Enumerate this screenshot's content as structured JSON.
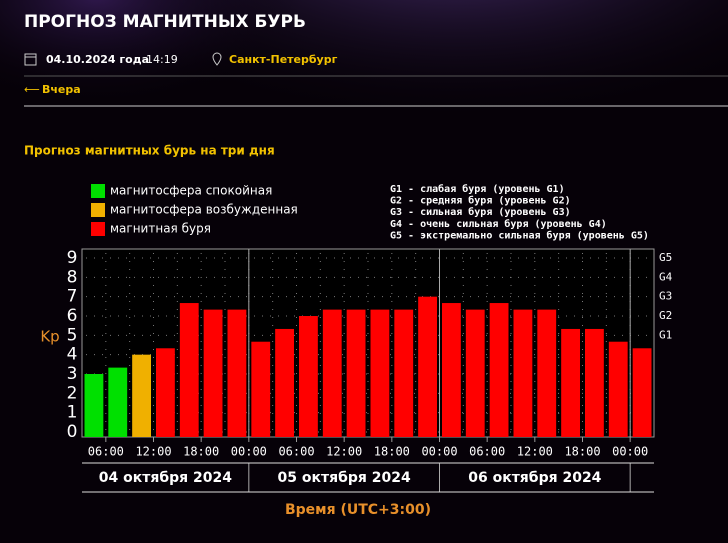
{
  "page": {
    "title": "ПРОГНОЗ МАГНИТНЫХ БУРЬ",
    "date": "04.10.2024 года",
    "time": "14:19",
    "city": "Санкт-Петербург",
    "back": "Вчера",
    "section_title": "Прогноз магнитных бурь на три дня"
  },
  "chart_data": {
    "type": "bar",
    "y_label": "Kp",
    "x_label": "Время (UTC+3:00)",
    "legend": [
      {
        "label": "магнитосфера спокойная",
        "color": "#00e000"
      },
      {
        "label": "магнитосфера возбужденная",
        "color": "#f0b000"
      },
      {
        "label": "магнитная буря",
        "color": "#ff0000"
      }
    ],
    "g_scale": [
      "G1 - слабая буря (уровень G1)",
      "G2 - средняя буря (уровень G2)",
      "G3 - сильная буря (уровень G3)",
      "G4 - очень сильная буря (уровень G4)",
      "G5 - экстремально сильная буря (уровень G5)"
    ],
    "categories": [
      null,
      null,
      null,
      null,
      null,
      null,
      null,
      null,
      null,
      null,
      null,
      null,
      null,
      null,
      null,
      null,
      null,
      null,
      null,
      null,
      null,
      null,
      null,
      null
    ],
    "values": [
      3,
      3.33,
      4,
      4.33,
      6.67,
      6.33,
      6.33,
      4.67,
      5.33,
      6,
      6.33,
      6.33,
      6.33,
      6.33,
      7,
      6.67,
      6.33,
      6.67,
      6.33,
      6.33,
      5.33,
      5.33,
      4.67,
      4.33
    ],
    "colors": [
      "#00e000",
      "#00e000",
      "#f0b000",
      "#ff0000",
      "#ff0000",
      "#ff0000",
      "#ff0000",
      "#ff0000",
      "#ff0000",
      "#ff0000",
      "#ff0000",
      "#ff0000",
      "#ff0000",
      "#ff0000",
      "#ff0000",
      "#ff0000",
      "#ff0000",
      "#ff0000",
      "#ff0000",
      "#ff0000",
      "#ff0000",
      "#ff0000",
      "#ff0000",
      "#ff0000"
    ],
    "time_labels": [
      "06:00",
      "12:00",
      "18:00",
      "00:00",
      "06:00",
      "12:00",
      "18:00",
      "00:00",
      "06:00",
      "12:00",
      "18:00",
      "00:00"
    ],
    "date_labels": [
      "04 октября 2024",
      "05 октября 2024",
      "06 октября 2024"
    ],
    "ylim": [
      0,
      9
    ],
    "yticks": [
      0,
      1,
      2,
      3,
      4,
      5,
      6,
      7,
      8,
      9
    ],
    "y2lim": [
      0,
      9
    ],
    "y2ticks": [
      {
        "value": 5,
        "label": "G1"
      },
      {
        "value": 6,
        "label": "G2"
      },
      {
        "value": 7,
        "label": "G3"
      },
      {
        "value": 8,
        "label": "G4"
      },
      {
        "value": 9,
        "label": "G5"
      }
    ],
    "grid": true
  }
}
